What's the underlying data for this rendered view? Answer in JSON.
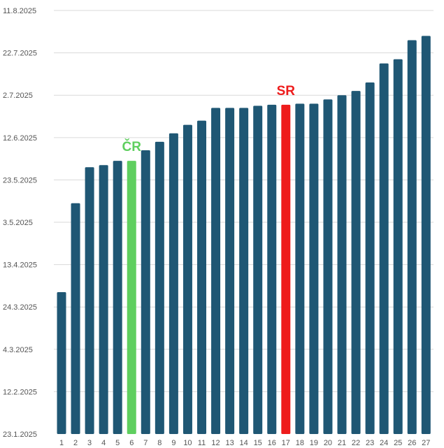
{
  "chart_data": {
    "type": "bar",
    "title": "",
    "xlabel": "",
    "ylabel": "",
    "categories": [
      "1",
      "2",
      "3",
      "4",
      "5",
      "6",
      "7",
      "8",
      "9",
      "10",
      "11",
      "12",
      "13",
      "14",
      "15",
      "16",
      "17",
      "18",
      "19",
      "20",
      "21",
      "22",
      "23",
      "24",
      "25",
      "26",
      "27"
    ],
    "y_tick_labels": [
      "23.1.2025",
      "12.2.2025",
      "4.3.2025",
      "24.3.2025",
      "13.4.2025",
      "3.5.2025",
      "23.5.2025",
      "12.6.2025",
      "2.7.2025",
      "22.7.2025",
      "11.8.2025"
    ],
    "y_tick_days": [
      0,
      20,
      40,
      60,
      80,
      100,
      120,
      140,
      160,
      180,
      200
    ],
    "ylim_days": [
      0,
      201
    ],
    "values_days": [
      67,
      109,
      126,
      127,
      129,
      129,
      134,
      138,
      142,
      146,
      148,
      154,
      154,
      154,
      155,
      155.5,
      155.5,
      156,
      156,
      158,
      160,
      162,
      166,
      175,
      177,
      186,
      188
    ],
    "bar_color": "#1f5774",
    "highlights": [
      {
        "index": 5,
        "label": "ČR",
        "color": "#5fcf5f"
      },
      {
        "index": 16,
        "label": "SR",
        "color": "#ee1c1c"
      }
    ],
    "grid": true
  }
}
